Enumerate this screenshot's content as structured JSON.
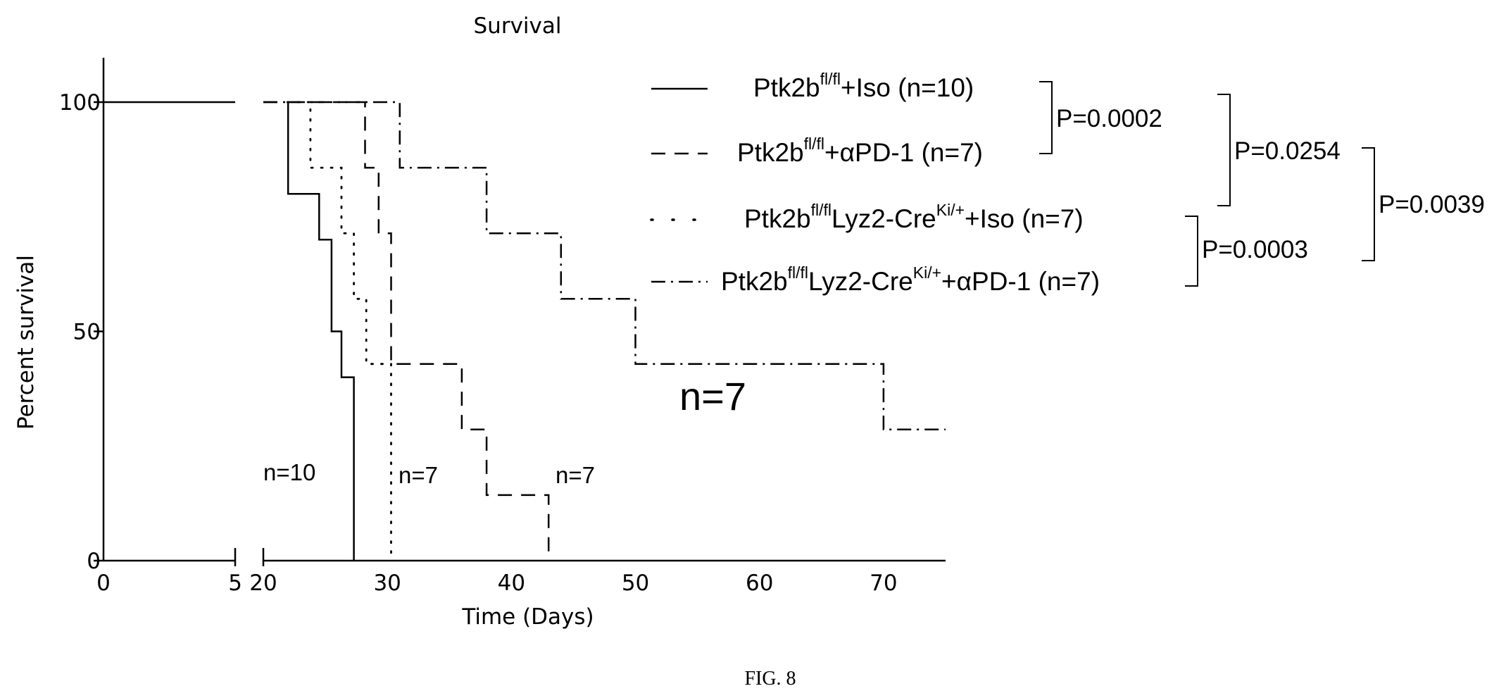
{
  "figure_caption": "FIG. 8",
  "chart_data": {
    "type": "line",
    "subtype": "kaplan-meier-step",
    "title": "Survival",
    "xlabel": "Time (Days)",
    "ylabel": "Percent survival",
    "x_axis_break": [
      5,
      20
    ],
    "x_ticks": [
      0,
      5,
      20,
      30,
      40,
      50,
      60,
      70
    ],
    "x_tick_labels": [
      "0",
      "5",
      "20",
      "30",
      "40",
      "50",
      "60",
      "70"
    ],
    "y_ticks": [
      0,
      50,
      100
    ],
    "y_tick_labels": [
      "0",
      "50",
      "100"
    ],
    "xlim": [
      0,
      75
    ],
    "ylim": [
      0,
      100
    ],
    "grid": false,
    "legend_position": "top-right",
    "series": [
      {
        "name_main": "Ptk2b",
        "name_sup": "fl/fl",
        "name_rest": "+Iso (n=10)",
        "style": "solid",
        "points": [
          [
            0,
            100
          ],
          [
            22,
            100
          ],
          [
            22,
            80
          ],
          [
            24.5,
            80
          ],
          [
            24.5,
            70
          ],
          [
            25.5,
            70
          ],
          [
            25.5,
            50
          ],
          [
            26.3,
            50
          ],
          [
            26.3,
            40
          ],
          [
            27.3,
            40
          ],
          [
            27.3,
            0
          ]
        ]
      },
      {
        "name_main": "Ptk2b",
        "name_sup": "fl/fl",
        "name_rest": "+αPD-1 (n=7)",
        "style": "dashed",
        "points": [
          [
            20,
            100
          ],
          [
            28.2,
            100
          ],
          [
            28.2,
            85.7
          ],
          [
            29.3,
            85.7
          ],
          [
            29.3,
            71.4
          ],
          [
            30.3,
            71.4
          ],
          [
            30.3,
            42.9
          ],
          [
            36,
            42.9
          ],
          [
            36,
            28.6
          ],
          [
            38,
            28.6
          ],
          [
            38,
            14.3
          ],
          [
            43,
            14.3
          ],
          [
            43,
            0
          ]
        ]
      },
      {
        "name_main": "Ptk2b",
        "name_sup": "fl/fl",
        "name_mid": "Lyz2-Cre",
        "name_sup2": "Ki/+",
        "name_rest": "+Iso (n=7)",
        "style": "dotted",
        "points": [
          [
            22,
            100
          ],
          [
            23.8,
            100
          ],
          [
            23.8,
            85.7
          ],
          [
            26.3,
            85.7
          ],
          [
            26.3,
            71.4
          ],
          [
            27.3,
            71.4
          ],
          [
            27.3,
            57.1
          ],
          [
            28.3,
            57.1
          ],
          [
            28.3,
            42.9
          ],
          [
            30.3,
            42.9
          ],
          [
            30.3,
            0
          ]
        ]
      },
      {
        "name_main": "Ptk2b",
        "name_sup": "fl/fl",
        "name_mid": "Lyz2-Cre",
        "name_sup2": "Ki/+",
        "name_rest": "+αPD-1 (n=7)",
        "style": "dashdot",
        "points": [
          [
            20,
            100
          ],
          [
            31,
            100
          ],
          [
            31,
            85.7
          ],
          [
            38,
            85.7
          ],
          [
            38,
            71.4
          ],
          [
            44,
            71.4
          ],
          [
            44,
            57.1
          ],
          [
            50,
            57.1
          ],
          [
            50,
            42.9
          ],
          [
            70,
            42.9
          ],
          [
            70,
            28.6
          ],
          [
            75,
            28.6
          ]
        ]
      }
    ],
    "p_values": [
      "P=0.0002",
      "P=0.0254",
      "P=0.0039",
      "P=0.0003"
    ],
    "annotations": [
      "n=10",
      "n=7",
      "n=7",
      "n=7"
    ]
  }
}
